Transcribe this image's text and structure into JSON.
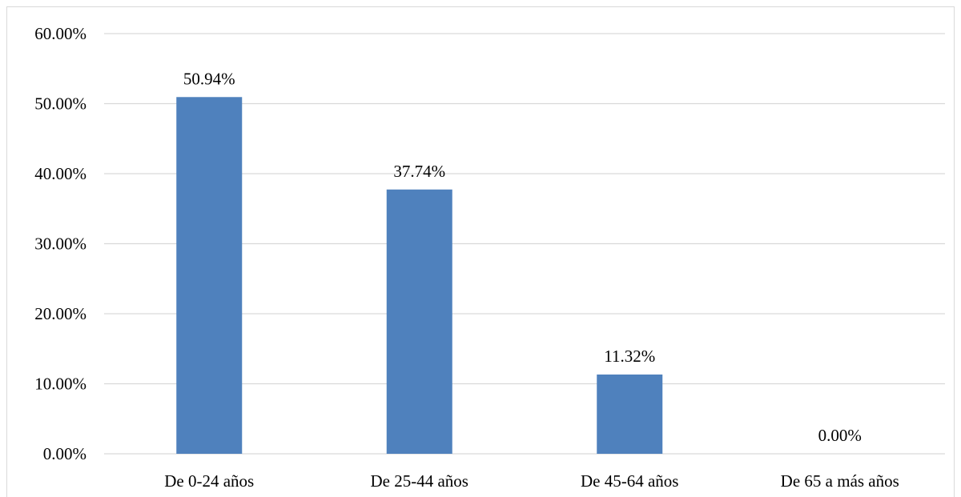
{
  "chart_data": {
    "type": "bar",
    "categories": [
      "De 0-24 años",
      "De 25-44 años",
      "De 45-64 años",
      "De 65 a más años"
    ],
    "values": [
      50.94,
      37.74,
      11.32,
      0.0
    ],
    "data_labels": [
      "50.94%",
      "37.74%",
      "11.32%",
      "0.00%"
    ],
    "y_ticks": [
      "0.00%",
      "10.00%",
      "20.00%",
      "30.00%",
      "40.00%",
      "50.00%",
      "60.00%"
    ],
    "ylim": [
      0,
      60
    ],
    "grid": true,
    "legend": "none",
    "bar_color": "#4f81bd",
    "grid_color": "#d9d9d9"
  }
}
